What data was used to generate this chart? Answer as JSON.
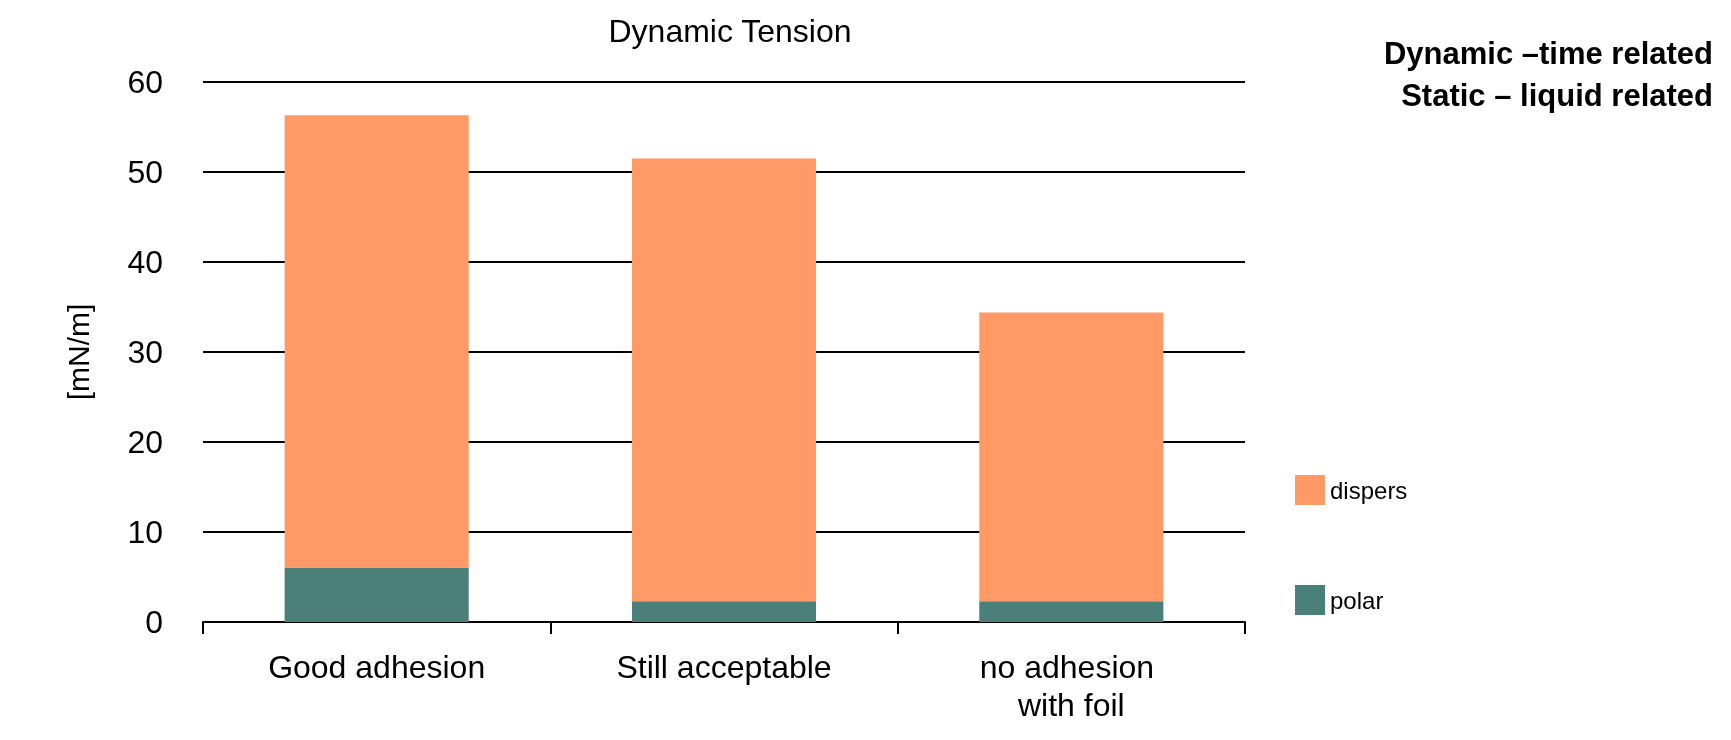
{
  "chart_data": {
    "type": "bar",
    "title": "Dynamic Tension",
    "ylabel": "[mN/m]",
    "categories": [
      "Good adhesion",
      "Still acceptable",
      "no adhesion with foil"
    ],
    "stacked": true,
    "series": [
      {
        "name": "polar",
        "color": "#4a7f7a",
        "values": [
          6.0,
          2.3,
          2.3
        ]
      },
      {
        "name": "dispers",
        "color": "#ff9966",
        "values": [
          50.3,
          49.2,
          32.1
        ]
      }
    ],
    "ylim": [
      0,
      60
    ],
    "yticks": [
      0,
      10,
      20,
      30,
      40,
      50,
      60
    ],
    "grid": "y",
    "legend": "right",
    "annotations": [
      "Dynamic –time related",
      "Static – liquid related"
    ]
  }
}
